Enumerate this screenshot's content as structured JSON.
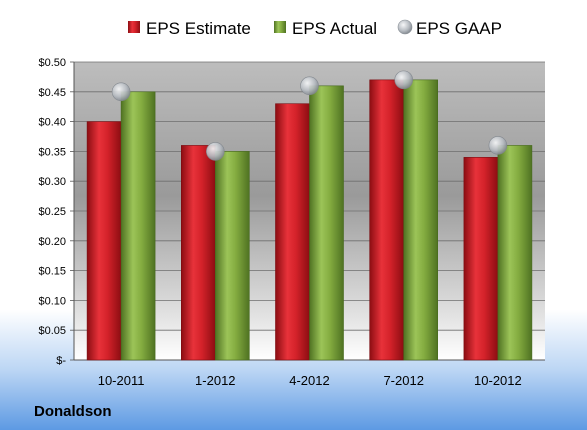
{
  "company": "Donaldson",
  "colors": {
    "estimate": "#c8171e",
    "actual": "#7fa83a",
    "gaap": "#b9bec4"
  },
  "chart_data": {
    "type": "bar",
    "title": "",
    "xlabel": "",
    "ylabel": "",
    "categories": [
      "10-2011",
      "1-2012",
      "4-2012",
      "7-2012",
      "10-2012"
    ],
    "series": [
      {
        "name": "EPS Estimate",
        "values": [
          0.4,
          0.36,
          0.43,
          0.47,
          0.34
        ]
      },
      {
        "name": "EPS Actual",
        "values": [
          0.45,
          0.35,
          0.46,
          0.47,
          0.36
        ]
      },
      {
        "name": "EPS GAAP",
        "values": [
          0.45,
          0.35,
          0.46,
          0.47,
          0.36
        ],
        "marker": "circle"
      }
    ],
    "ylim": [
      0,
      0.5
    ],
    "y_ticks": [
      "$-",
      "$0.05",
      "$0.10",
      "$0.15",
      "$0.20",
      "$0.25",
      "$0.30",
      "$0.35",
      "$0.40",
      "$0.45",
      "$0.50"
    ],
    "grid": true,
    "legend": "top"
  }
}
